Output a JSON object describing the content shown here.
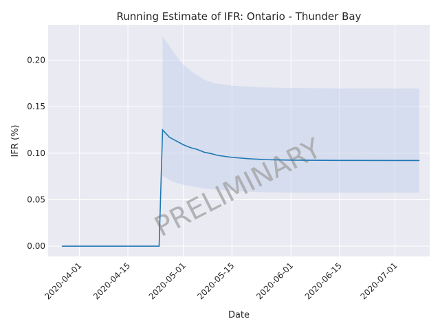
{
  "chart_data": {
    "type": "line",
    "title": "Running Estimate of IFR: Ontario - Thunder Bay",
    "xlabel": "Date",
    "ylabel": "IFR (%)",
    "watermark": "PRELIMINARY",
    "x_range": [
      "2020-03-23",
      "2020-07-11"
    ],
    "ylim": [
      -0.011,
      0.238
    ],
    "grid": true,
    "legend": "none",
    "x_ticks": [
      "2020-04-01",
      "2020-04-15",
      "2020-05-01",
      "2020-05-15",
      "2020-06-01",
      "2020-06-15",
      "2020-07-01"
    ],
    "y_ticks": [
      0.0,
      0.05,
      0.1,
      0.15,
      0.2
    ],
    "y_tick_labels": [
      "0.00",
      "0.05",
      "0.10",
      "0.15",
      "0.20"
    ],
    "colors": {
      "line": "#1f77b4",
      "band": "#aec7e8",
      "background": "#eaeaf2",
      "grid": "#ffffff"
    },
    "series": [
      {
        "x": [
          "2020-03-27",
          "2020-04-24",
          "2020-04-25",
          "2020-04-26",
          "2020-04-27",
          "2020-04-28",
          "2020-04-29",
          "2020-04-30",
          "2020-05-01",
          "2020-05-03",
          "2020-05-05",
          "2020-05-07",
          "2020-05-09",
          "2020-05-11",
          "2020-05-15",
          "2020-05-20",
          "2020-05-25",
          "2020-06-01",
          "2020-06-15",
          "2020-07-01",
          "2020-07-08"
        ],
        "values": [
          0.0,
          0.0,
          0.125,
          0.121,
          0.117,
          0.115,
          0.113,
          0.111,
          0.109,
          0.106,
          0.104,
          0.101,
          0.0995,
          0.0975,
          0.0955,
          0.094,
          0.093,
          0.0925,
          0.0922,
          0.0921,
          0.0921
        ]
      }
    ],
    "band": {
      "x": [
        "2020-04-25",
        "2020-04-27",
        "2020-04-29",
        "2020-05-01",
        "2020-05-04",
        "2020-05-07",
        "2020-05-10",
        "2020-05-15",
        "2020-05-20",
        "2020-05-25",
        "2020-06-01",
        "2020-06-15",
        "2020-07-01",
        "2020-07-08"
      ],
      "upper": [
        0.225,
        0.215,
        0.204,
        0.195,
        0.186,
        0.179,
        0.175,
        0.1725,
        0.1715,
        0.1705,
        0.17,
        0.1695,
        0.1695,
        0.1695
      ],
      "lower": [
        0.076,
        0.071,
        0.068,
        0.066,
        0.064,
        0.062,
        0.061,
        0.0595,
        0.0585,
        0.058,
        0.0575,
        0.0575,
        0.0575,
        0.0575
      ]
    }
  }
}
